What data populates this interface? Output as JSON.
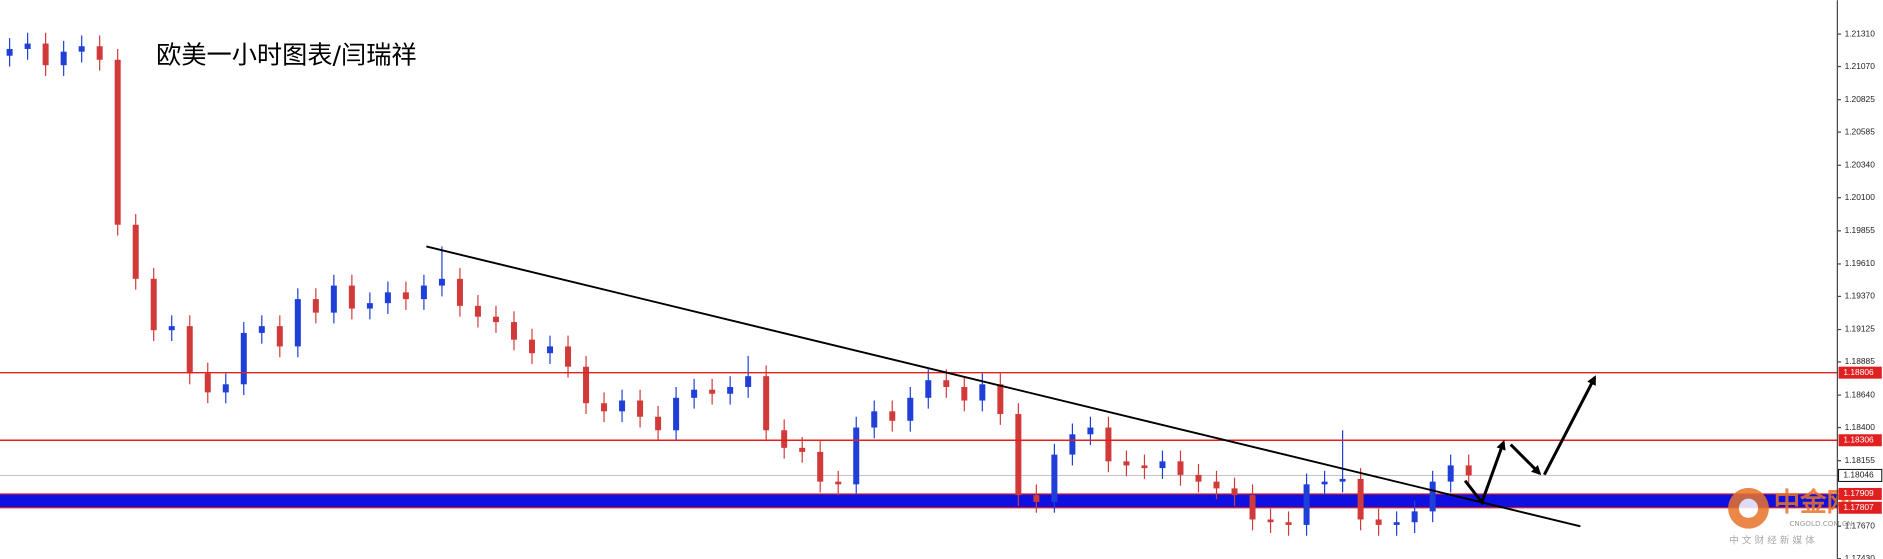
{
  "chart_data": {
    "type": "candlestick",
    "title": "欧美一小时图表/闫瑞祥",
    "open": [
      1.2115,
      1.212,
      1.2124,
      1.2108,
      1.2118,
      1.2122,
      1.2112,
      1.199,
      1.195,
      1.1912,
      1.1915,
      1.188,
      1.1866,
      1.1872,
      1.191,
      1.1915,
      1.19,
      1.1935,
      1.1925,
      1.1945,
      1.1928,
      1.1932,
      1.194,
      1.1935,
      1.1945,
      1.195,
      1.193,
      1.1922,
      1.1918,
      1.1905,
      1.1895,
      1.19,
      1.1885,
      1.1858,
      1.1852,
      1.186,
      1.1848,
      1.1838,
      1.1862,
      1.1868,
      1.1865,
      1.187,
      1.1878,
      1.1838,
      1.1825,
      1.1822,
      1.18,
      1.1798,
      1.184,
      1.1852,
      1.1845,
      1.1862,
      1.1875,
      1.187,
      1.186,
      1.1872,
      1.185,
      1.179,
      1.1785,
      1.182,
      1.1835,
      1.184,
      1.1815,
      1.1812,
      1.181,
      1.1815,
      1.1805,
      1.18,
      1.1795,
      1.179,
      1.1772,
      1.177,
      1.1768,
      1.1798,
      1.18,
      1.1802,
      1.1772,
      1.1768,
      1.177,
      1.1778,
      1.18,
      1.1812
    ],
    "high": [
      1.2128,
      1.2132,
      1.2132,
      1.2126,
      1.213,
      1.213,
      1.212,
      1.1998,
      1.1958,
      1.1923,
      1.1923,
      1.1888,
      1.188,
      1.1918,
      1.1923,
      1.1923,
      1.1943,
      1.1943,
      1.1953,
      1.1953,
      1.194,
      1.1948,
      1.1948,
      1.1953,
      1.1974,
      1.1958,
      1.1938,
      1.193,
      1.1926,
      1.1913,
      1.1908,
      1.1908,
      1.1893,
      1.1866,
      1.1868,
      1.1868,
      1.1856,
      1.187,
      1.1876,
      1.1876,
      1.1878,
      1.1893,
      1.1886,
      1.1846,
      1.1833,
      1.183,
      1.1808,
      1.1848,
      1.186,
      1.186,
      1.187,
      1.1883,
      1.1883,
      1.1878,
      1.188,
      1.188,
      1.1858,
      1.1798,
      1.1828,
      1.1843,
      1.1848,
      1.1848,
      1.1823,
      1.182,
      1.1823,
      1.1823,
      1.1813,
      1.1808,
      1.1803,
      1.1798,
      1.178,
      1.1778,
      1.1806,
      1.1808,
      1.1838,
      1.181,
      1.178,
      1.1778,
      1.1786,
      1.1808,
      1.182,
      1.182
    ],
    "low": [
      1.2107,
      1.2112,
      1.21,
      1.21,
      1.211,
      1.2104,
      1.1982,
      1.1942,
      1.1904,
      1.1904,
      1.1872,
      1.1858,
      1.1858,
      1.1864,
      1.1902,
      1.1892,
      1.1892,
      1.1917,
      1.1917,
      1.192,
      1.192,
      1.1924,
      1.1927,
      1.1927,
      1.1937,
      1.1922,
      1.1914,
      1.191,
      1.1897,
      1.1887,
      1.1887,
      1.1877,
      1.185,
      1.1844,
      1.1844,
      1.184,
      1.183,
      1.183,
      1.1854,
      1.1857,
      1.1857,
      1.1862,
      1.183,
      1.1817,
      1.1814,
      1.1792,
      1.179,
      1.179,
      1.1832,
      1.1837,
      1.1837,
      1.1854,
      1.1862,
      1.1852,
      1.1852,
      1.1842,
      1.1782,
      1.1777,
      1.1777,
      1.1812,
      1.1827,
      1.1807,
      1.1804,
      1.1802,
      1.1802,
      1.1797,
      1.1792,
      1.1787,
      1.1782,
      1.1764,
      1.1762,
      1.176,
      1.176,
      1.179,
      1.1792,
      1.1764,
      1.176,
      1.176,
      1.1762,
      1.177,
      1.1792,
      1.17966
    ],
    "close": [
      1.212,
      1.2124,
      1.2108,
      1.2118,
      1.2122,
      1.2112,
      1.199,
      1.195,
      1.1912,
      1.1915,
      1.188,
      1.1866,
      1.1872,
      1.191,
      1.1915,
      1.19,
      1.1935,
      1.1925,
      1.1945,
      1.1928,
      1.1932,
      1.194,
      1.1935,
      1.1945,
      1.195,
      1.193,
      1.1922,
      1.1918,
      1.1905,
      1.1895,
      1.19,
      1.1885,
      1.1858,
      1.1852,
      1.186,
      1.1848,
      1.1838,
      1.1862,
      1.1868,
      1.1865,
      1.187,
      1.1878,
      1.1838,
      1.1825,
      1.1822,
      1.18,
      1.1798,
      1.184,
      1.1852,
      1.1845,
      1.1862,
      1.1875,
      1.187,
      1.186,
      1.1872,
      1.185,
      1.179,
      1.1785,
      1.182,
      1.1835,
      1.184,
      1.1815,
      1.1812,
      1.181,
      1.1815,
      1.1805,
      1.18,
      1.1795,
      1.179,
      1.1772,
      1.177,
      1.1768,
      1.1798,
      1.18,
      1.1802,
      1.1772,
      1.1768,
      1.177,
      1.1778,
      1.18,
      1.1812,
      1.18046
    ],
    "up_color": "#1f3fd8",
    "down_color": "#d23a3a",
    "ylim": [
      1.1743,
      1.2156
    ],
    "yticks": [
      {
        "value": 1.2131,
        "label": "1.21310"
      },
      {
        "value": 1.2107,
        "label": "1.21070"
      },
      1.20825,
      1.20585,
      {
        "value": 1.2034,
        "label": "1.20340"
      },
      {
        "value": 1.201,
        "label": "1.20100"
      },
      1.19855,
      {
        "value": 1.1961,
        "label": "1.19610"
      },
      {
        "value": 1.1937,
        "label": "1.19370"
      },
      1.19125,
      1.18885,
      {
        "value": 1.1864,
        "label": "1.18640"
      },
      {
        "value": 1.184,
        "label": "1.18400"
      },
      1.18155,
      {
        "value": 1.1767,
        "label": "1.17670"
      },
      {
        "value": 1.1743,
        "label": "1.17430"
      }
    ],
    "levels": [
      1.18806,
      1.18306
    ],
    "level_color": "#e02020",
    "band": [
      1.17807,
      1.17909
    ],
    "band_color": "#1010e0",
    "current_price": 1.18046,
    "watermark": {
      "brand": "中金网",
      "site": "CNGOLD.COM.CN",
      "tagline": "中 文 财 经 新 媒 体"
    }
  }
}
